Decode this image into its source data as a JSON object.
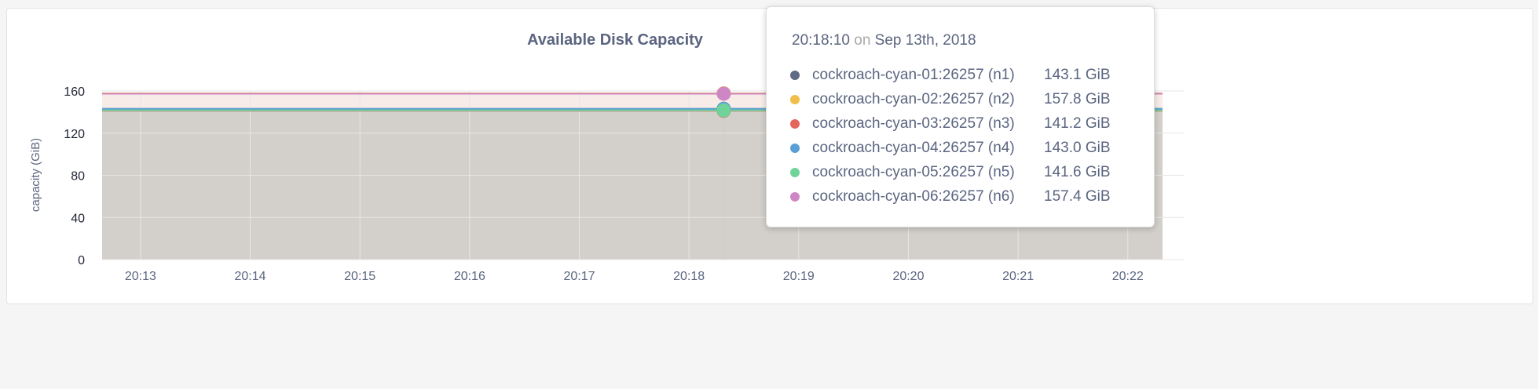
{
  "chart_data": {
    "type": "area",
    "title": "Available Disk Capacity",
    "ylabel": "capacity (GiB)",
    "xlabel": "",
    "ylim": [
      0,
      160
    ],
    "yticks": [
      "0",
      "40",
      "80",
      "120",
      "160"
    ],
    "yticks_values": [
      0,
      40,
      80,
      120,
      160
    ],
    "xticks": [
      "20:13",
      "20:14",
      "20:15",
      "20:16",
      "20:17",
      "20:18",
      "20:19",
      "20:20",
      "20:21",
      "20:22"
    ],
    "xlim_minutes": [
      "20:12:39",
      "20:22:19"
    ],
    "grid": true,
    "series": [
      {
        "name": "cockroach-cyan-01:26257 (n1)",
        "color": "#5f6b85",
        "value": 143.1,
        "label": "143.1 GiB"
      },
      {
        "name": "cockroach-cyan-02:26257 (n2)",
        "color": "#f0bf48",
        "value": 157.8,
        "label": "157.8 GiB"
      },
      {
        "name": "cockroach-cyan-03:26257 (n3)",
        "color": "#e3655b",
        "value": 141.2,
        "label": "141.2 GiB"
      },
      {
        "name": "cockroach-cyan-04:26257 (n4)",
        "color": "#5aa0d6",
        "value": 143.0,
        "label": "143.0 GiB"
      },
      {
        "name": "cockroach-cyan-05:26257 (n5)",
        "color": "#6fd39a",
        "value": 141.6,
        "label": "141.6 GiB"
      },
      {
        "name": "cockroach-cyan-06:26257 (n6)",
        "color": "#cf86c4",
        "value": 157.4,
        "label": "157.4 GiB"
      }
    ]
  },
  "tooltip": {
    "time": "20:18:10",
    "on": "on",
    "date": "Sep 13th, 2018",
    "hover_time": "20:18:19"
  }
}
